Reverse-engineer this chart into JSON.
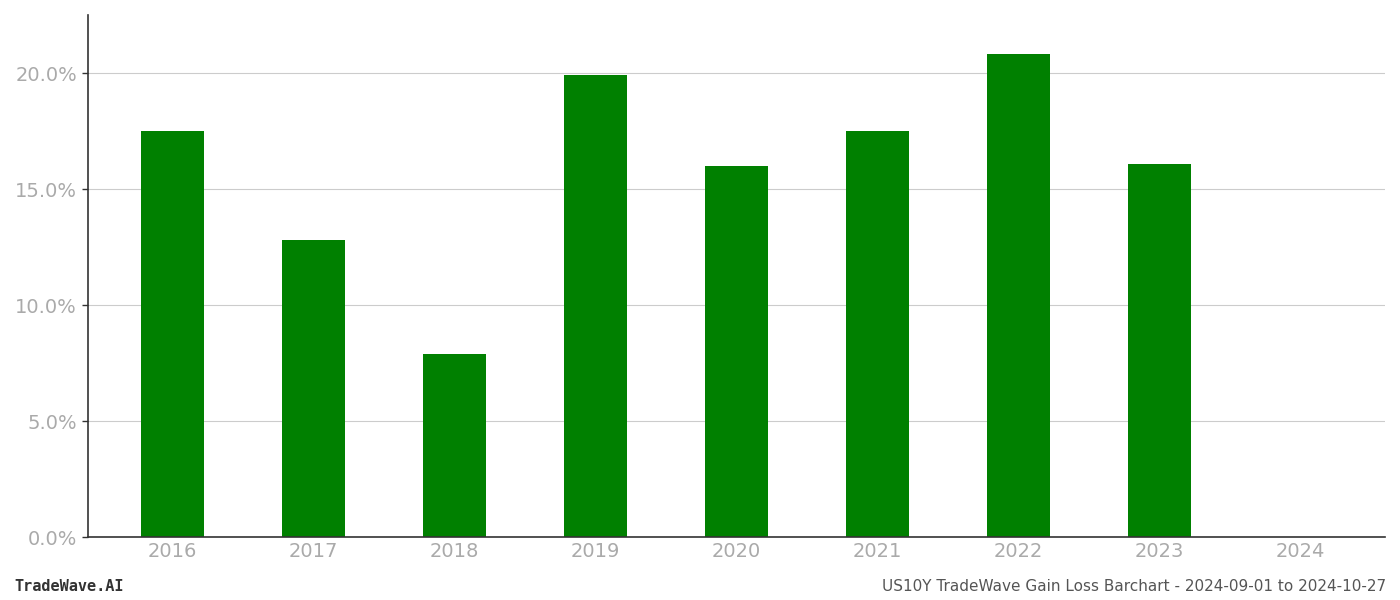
{
  "categories": [
    "2016",
    "2017",
    "2018",
    "2019",
    "2020",
    "2021",
    "2022",
    "2023",
    "2024"
  ],
  "values": [
    0.175,
    0.128,
    0.079,
    0.199,
    0.16,
    0.175,
    0.208,
    0.161,
    null
  ],
  "bar_color": "#008000",
  "ylim": [
    0,
    0.225
  ],
  "yticks": [
    0.0,
    0.05,
    0.1,
    0.15,
    0.2
  ],
  "ytick_labels": [
    "0.0%",
    "5.0%",
    "10.0%",
    "15.0%",
    "20.0%"
  ],
  "grid_color": "#cccccc",
  "background_color": "#ffffff",
  "footer_left": "TradeWave.AI",
  "footer_right": "US10Y TradeWave Gain Loss Barchart - 2024-09-01 to 2024-10-27",
  "footer_fontsize": 11,
  "tick_fontsize": 14,
  "axis_label_color": "#aaaaaa",
  "bar_width": 0.45,
  "left_spine_color": "#333333"
}
